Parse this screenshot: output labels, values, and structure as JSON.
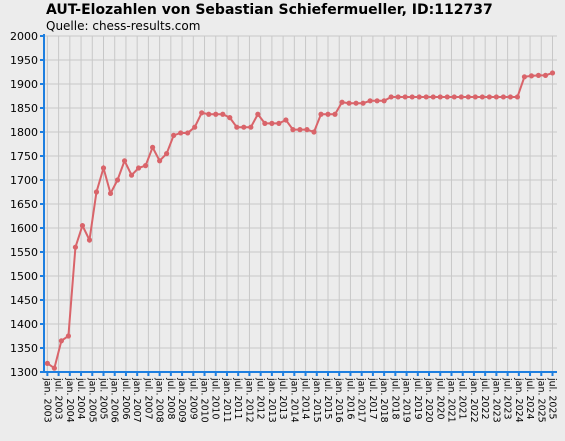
{
  "chart_data": {
    "type": "line",
    "title": "AUT-Elozahlen von Sebastian Schiefermueller, ID:112737",
    "subtitle": "Quelle: chess-results.com",
    "x": [
      2003,
      2003.3125,
      2003.625,
      2003.9375,
      2004.25,
      2004.5625,
      2004.875,
      2005.1875,
      2005.5,
      2005.8125,
      2006.125,
      2006.4375,
      2006.75,
      2007.0625,
      2007.375,
      2007.6875,
      2008,
      2008.3125,
      2008.625,
      2008.9375,
      2009.25,
      2009.5625,
      2009.875,
      2010.1875,
      2010.5,
      2010.8125,
      2011.125,
      2011.4375,
      2011.75,
      2012.0625,
      2012.375,
      2012.6875,
      2013,
      2013.3125,
      2013.625,
      2013.9375,
      2014.25,
      2014.5625,
      2014.875,
      2015.1875,
      2015.5,
      2015.8125,
      2016.125,
      2016.4375,
      2016.75,
      2017.0625,
      2017.375,
      2017.6875,
      2018,
      2018.3125,
      2018.625,
      2018.9375,
      2019.25,
      2019.5625,
      2019.875,
      2020.1875,
      2020.5,
      2020.8125,
      2021.125,
      2021.4375,
      2021.75,
      2022.0625,
      2022.375,
      2022.6875,
      2023,
      2023.3125,
      2023.625,
      2023.9375,
      2024.25,
      2024.5625,
      2024.875,
      2025.1875,
      2025.5
    ],
    "series": [
      {
        "color": "#d9646a",
        "values": [
          1318,
          1308,
          1365,
          1375,
          1560,
          1605,
          1575,
          1675,
          1725,
          1672,
          1700,
          1740,
          1710,
          1725,
          1730,
          1768,
          1740,
          1755,
          1793,
          1798,
          1798,
          1810,
          1840,
          1837,
          1837,
          1837,
          1830,
          1810,
          1810,
          1810,
          1837,
          1818,
          1818,
          1818,
          1825,
          1805,
          1805,
          1805,
          1800,
          1837,
          1837,
          1837,
          1862,
          1860,
          1860,
          1860,
          1865,
          1865,
          1865,
          1873,
          1873,
          1873,
          1873,
          1873,
          1873,
          1873,
          1873,
          1873,
          1873,
          1873,
          1873,
          1873,
          1873,
          1873,
          1873,
          1873,
          1873,
          1873,
          1915,
          1917,
          1918,
          1918,
          1923
        ]
      }
    ],
    "xlim": [
      2002.85,
      2025.7
    ],
    "xticks": [
      {
        "value": 2003,
        "label": "jan. 2003"
      },
      {
        "value": 2003.5,
        "label": "jul. 2003"
      },
      {
        "value": 2004,
        "label": "jan. 2004"
      },
      {
        "value": 2004.5,
        "label": "jul. 2004"
      },
      {
        "value": 2005,
        "label": "jan. 2005"
      },
      {
        "value": 2005.5,
        "label": "jul. 2005"
      },
      {
        "value": 2006,
        "label": "jan. 2006"
      },
      {
        "value": 2006.5,
        "label": "jul. 2006"
      },
      {
        "value": 2007,
        "label": "jan. 2007"
      },
      {
        "value": 2007.5,
        "label": "jul. 2007"
      },
      {
        "value": 2008,
        "label": "jan. 2008"
      },
      {
        "value": 2008.5,
        "label": "jul. 2008"
      },
      {
        "value": 2009,
        "label": "jan. 2009"
      },
      {
        "value": 2009.5,
        "label": "jul. 2009"
      },
      {
        "value": 2010,
        "label": "jan. 2010"
      },
      {
        "value": 2010.5,
        "label": "jul. 2010"
      },
      {
        "value": 2011,
        "label": "jan. 2011"
      },
      {
        "value": 2011.5,
        "label": "jul. 2011"
      },
      {
        "value": 2012,
        "label": "jan. 2012"
      },
      {
        "value": 2012.5,
        "label": "jul. 2012"
      },
      {
        "value": 2013,
        "label": "jan. 2013"
      },
      {
        "value": 2013.5,
        "label": "jul. 2013"
      },
      {
        "value": 2014,
        "label": "jan. 2014"
      },
      {
        "value": 2014.5,
        "label": "jul. 2014"
      },
      {
        "value": 2015,
        "label": "jan. 2015"
      },
      {
        "value": 2015.5,
        "label": "jul. 2015"
      },
      {
        "value": 2016,
        "label": "jan. 2016"
      },
      {
        "value": 2016.5,
        "label": "jul. 2016"
      },
      {
        "value": 2017,
        "label": "jan. 2017"
      },
      {
        "value": 2017.5,
        "label": "jul. 2017"
      },
      {
        "value": 2018,
        "label": "jan. 2018"
      },
      {
        "value": 2018.5,
        "label": "jul. 2018"
      },
      {
        "value": 2019,
        "label": "jan. 2019"
      },
      {
        "value": 2019.5,
        "label": "jul. 2019"
      },
      {
        "value": 2020,
        "label": "jan. 2020"
      },
      {
        "value": 2020.5,
        "label": "jul. 2020"
      },
      {
        "value": 2021,
        "label": "jan. 2021"
      },
      {
        "value": 2021.5,
        "label": "jul. 2021"
      },
      {
        "value": 2022,
        "label": "jan. 2022"
      },
      {
        "value": 2022.5,
        "label": "jul. 2022"
      },
      {
        "value": 2023,
        "label": "jan. 2023"
      },
      {
        "value": 2023.5,
        "label": "jul. 2023"
      },
      {
        "value": 2024,
        "label": "jan. 2024"
      },
      {
        "value": 2024.5,
        "label": "jul. 2024"
      },
      {
        "value": 2025,
        "label": "jan. 2025"
      },
      {
        "value": 2025.5,
        "label": "jul. 2025"
      }
    ],
    "ylim": [
      1300,
      2000
    ],
    "yticks": [
      1300,
      1350,
      1400,
      1450,
      1500,
      1550,
      1600,
      1650,
      1700,
      1750,
      1800,
      1850,
      1900,
      1950,
      2000
    ],
    "grid": true
  }
}
